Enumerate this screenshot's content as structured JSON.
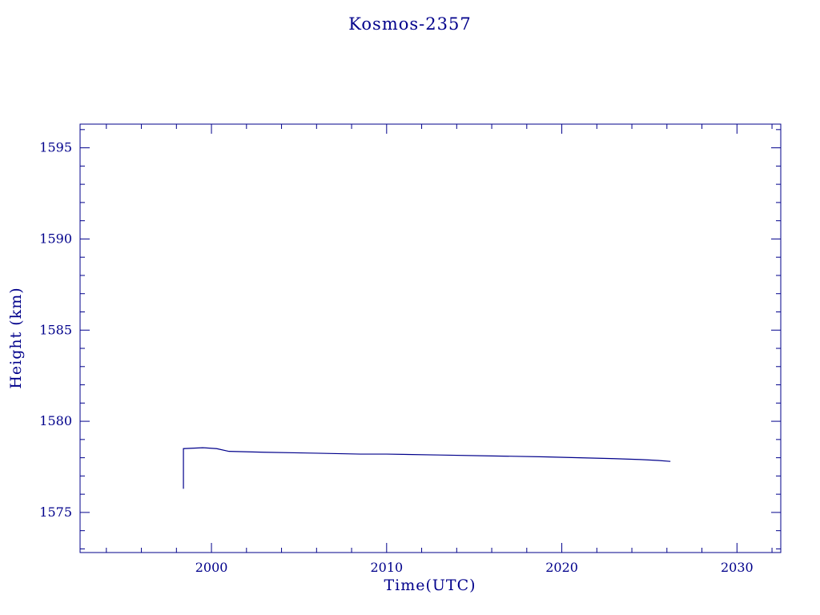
{
  "page": {
    "background": "#ffffff",
    "accent_color": "#00008b"
  },
  "chart_data": {
    "type": "line",
    "title": "Kosmos-2357",
    "xlabel": "Time(UTC)",
    "ylabel": "Height (km)",
    "xlim": [
      1992.5,
      2032.5
    ],
    "ylim": [
      1572.8,
      1596.3
    ],
    "xticks": [
      2000,
      2010,
      2020,
      2030
    ],
    "yticks": [
      1575,
      1580,
      1585,
      1590,
      1595
    ],
    "x_minor_step": 2,
    "y_minor_step": 1,
    "grid": false,
    "legend": null,
    "axis_color": "#00008b",
    "line_color": "#00008b",
    "series": [
      {
        "name": "height",
        "points": [
          [
            1998.4,
            1576.3
          ],
          [
            1998.4,
            1578.5
          ],
          [
            1999.5,
            1578.55
          ],
          [
            2000.3,
            1578.5
          ],
          [
            2001.0,
            1578.35
          ],
          [
            2003.0,
            1578.3
          ],
          [
            2006.0,
            1578.25
          ],
          [
            2008.5,
            1578.2
          ],
          [
            2010.0,
            1578.2
          ],
          [
            2013.0,
            1578.15
          ],
          [
            2016.0,
            1578.1
          ],
          [
            2019.0,
            1578.05
          ],
          [
            2021.0,
            1578.0
          ],
          [
            2023.0,
            1577.95
          ],
          [
            2024.5,
            1577.9
          ],
          [
            2025.5,
            1577.85
          ],
          [
            2026.2,
            1577.8
          ]
        ]
      }
    ]
  }
}
